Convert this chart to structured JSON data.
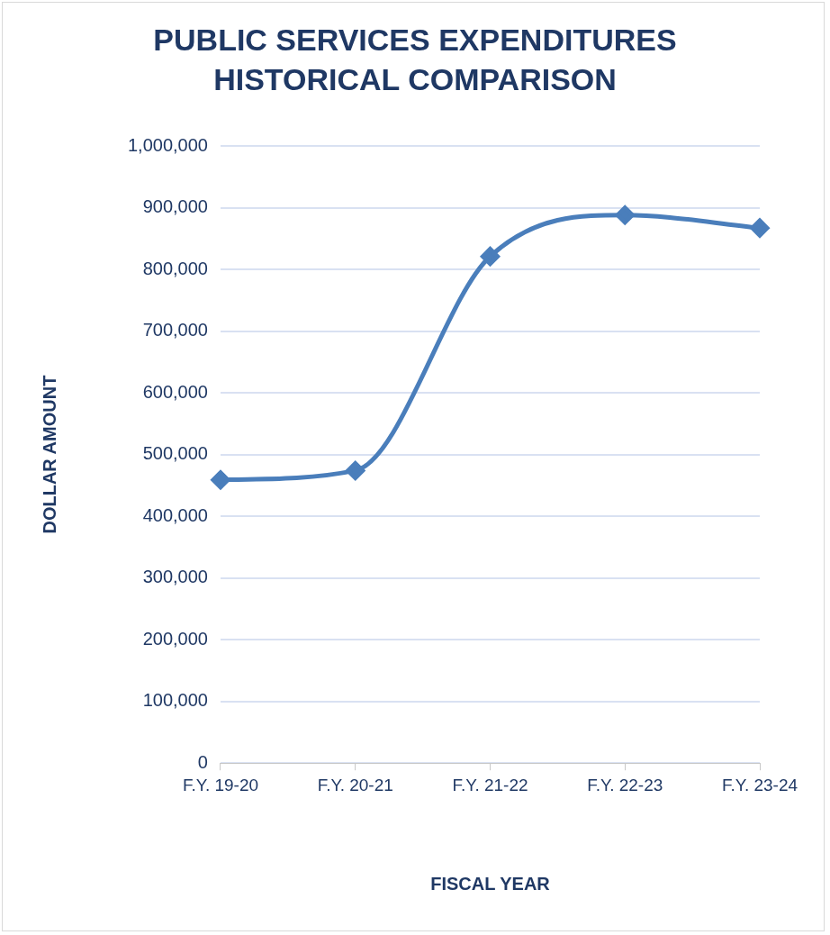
{
  "chart_data": {
    "type": "line",
    "title": "PUBLIC SERVICES EXPENDITURES HISTORICAL COMPARISON",
    "xlabel": "FISCAL YEAR",
    "ylabel": "DOLLAR AMOUNT",
    "categories": [
      "F.Y. 19-20",
      "F.Y. 20-21",
      "F.Y. 21-22",
      "F.Y. 22-23",
      "F.Y. 23-24"
    ],
    "series": [
      {
        "color": "#4a7ebb",
        "values": [
          459000,
          474000,
          821000,
          888000,
          867000
        ]
      }
    ],
    "ylim": [
      0,
      1000000
    ],
    "yticks": [
      0,
      {
        "value": 100000,
        "label": "100,000"
      },
      {
        "value": 200000,
        "label": "200,000"
      },
      {
        "value": 300000,
        "label": "300,000"
      },
      {
        "value": 400000,
        "label": "400,000"
      },
      {
        "value": 500000,
        "label": "500,000"
      },
      {
        "value": 600000,
        "label": "600,000"
      },
      {
        "value": 700000,
        "label": "700,000"
      },
      {
        "value": 800000,
        "label": "800,000"
      },
      {
        "value": 900000,
        "label": "900,000"
      },
      {
        "value": 1000000,
        "label": "1,000,000"
      }
    ],
    "grid": "y",
    "legend": false,
    "marker": "diamond",
    "line_style": "solid"
  }
}
